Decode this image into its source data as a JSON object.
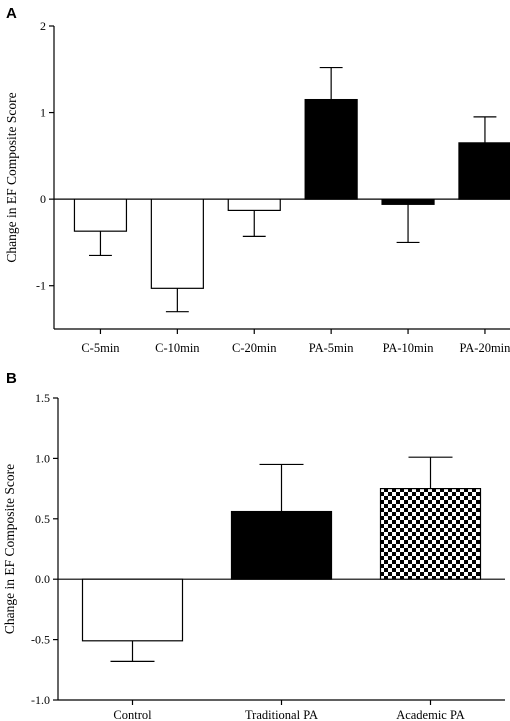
{
  "chart_data": [
    {
      "panel": "A",
      "type": "bar",
      "title": "",
      "xlabel": "",
      "ylabel": "Change in  EF Composite Score",
      "ylim": [
        -1.5,
        2
      ],
      "yticks": [
        "2",
        "1",
        "0",
        "-1"
      ],
      "ytick_values": [
        2,
        1,
        0,
        -1
      ],
      "categories": [
        "C-5min",
        "C-10min",
        "C-20min",
        "PA-5min",
        "PA-10min",
        "PA-20min"
      ],
      "values": [
        -0.37,
        -1.03,
        -0.13,
        1.15,
        -0.06,
        0.65
      ],
      "errors": [
        0.28,
        0.27,
        0.3,
        0.37,
        0.44,
        0.3
      ],
      "fills": [
        "white",
        "white",
        "white",
        "black",
        "black",
        "black"
      ]
    },
    {
      "panel": "B",
      "type": "bar",
      "title": "",
      "xlabel": "",
      "ylabel": "Change in EF Composite Score",
      "ylim": [
        -1.0,
        1.5
      ],
      "yticks": [
        "1.5",
        "1.0",
        "0.5",
        "0.0",
        "-0.5",
        "-1.0"
      ],
      "ytick_values": [
        1.5,
        1.0,
        0.5,
        0.0,
        -0.5,
        -1.0
      ],
      "categories": [
        "Control",
        "Traditional PA",
        "Academic PA"
      ],
      "values": [
        -0.51,
        0.56,
        0.75
      ],
      "errors": [
        0.17,
        0.39,
        0.26
      ],
      "fills": [
        "white",
        "black",
        "checker"
      ]
    }
  ]
}
